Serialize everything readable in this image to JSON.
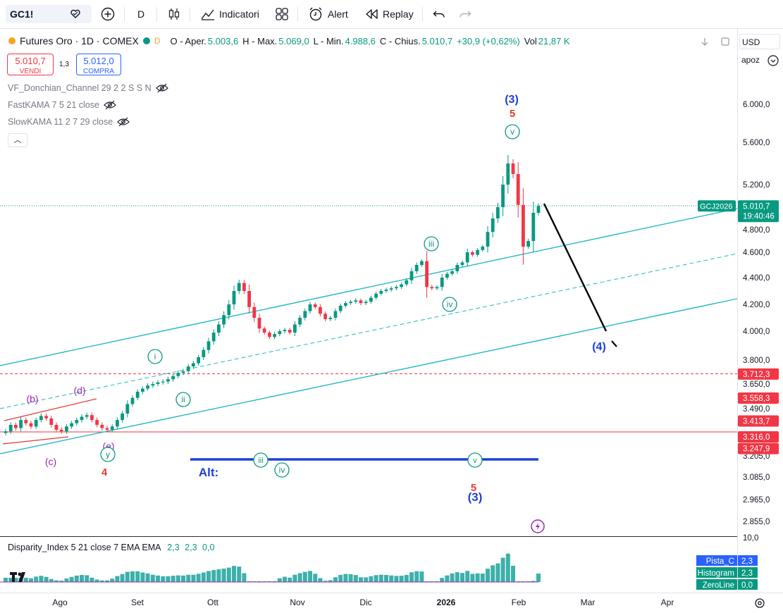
{
  "toolbar": {
    "symbol": "GC1!",
    "interval": "D",
    "indicators_label": "Indicatori",
    "alert_label": "Alert",
    "replay_label": "Replay"
  },
  "legend": {
    "title": "Futures Oro · 1D · COMEX",
    "badge": "D",
    "open_label": "O - Aper.",
    "open": "5.003,6",
    "high_label": "H - Max.",
    "high": "5.069,0",
    "low_label": "L - Min.",
    "low": "4.988,6",
    "close_label": "C - Chius.",
    "close": "5.010,7",
    "change": "+30,9 (+0,62%)",
    "vol_label": "Vol",
    "vol": "21,87 K"
  },
  "trade": {
    "sell_price": "5.010,7",
    "sell_label": "VENDI",
    "spread": "1,3",
    "buy_price": "5.012,0",
    "buy_label": "COMPRA"
  },
  "indicators": [
    "VF_Donchian_Channel 29 2 2 S S N",
    "FastKAMA 7 5 21 close",
    "SlowKAMA 11 2 7 29 close"
  ],
  "scale": {
    "currency": "USD",
    "mode": "apoz"
  },
  "subpane": {
    "title": "Disparity_Index 5 21 close 7 EMA EMA",
    "v1": "2,3",
    "v2": "2,3",
    "v3": "0,0",
    "top_tick": "10,0",
    "badges": [
      {
        "label": "Pista_C",
        "value": "2,3",
        "color": "#2962ff"
      },
      {
        "label": "Histogram",
        "value": "2,3",
        "color": "#089981"
      },
      {
        "label": "ZeroLine",
        "value": "0,0",
        "color": "#089981"
      }
    ]
  },
  "chart_data": {
    "type": "candlestick",
    "title": "Futures Oro · 1D · COMEX",
    "y_ticks": [
      2855,
      2965,
      3085,
      3205,
      3316,
      3490,
      3650,
      3800,
      4000,
      4200,
      4400,
      4600,
      4800,
      5200,
      5600,
      6000
    ],
    "y_tick_labels": [
      "2.855,0",
      "2.965,0",
      "3.085,0",
      "3.205,0",
      "3.316,0",
      "3.490,0",
      "3.650,0",
      "3.800,0",
      "4.000,0",
      "4.200,0",
      "4.400,0",
      "4.600,0",
      "4.800,0",
      "5.200,0",
      "5.600,0",
      "6.000,0"
    ],
    "x_labels": [
      "Ago",
      "Set",
      "Ott",
      "Nov",
      "Dic",
      "2026",
      "Feb",
      "Mar",
      "Apr"
    ],
    "series_close": [
      3350,
      3390,
      3370,
      3420,
      3400,
      3380,
      3420,
      3445,
      3430,
      3390,
      3360,
      3350,
      3380,
      3400,
      3420,
      3440,
      3450,
      3420,
      3390,
      3370,
      3360,
      3380,
      3420,
      3460,
      3520,
      3560,
      3600,
      3620,
      3640,
      3650,
      3660,
      3665,
      3680,
      3700,
      3720,
      3730,
      3760,
      3780,
      3820,
      3870,
      3930,
      3990,
      4050,
      4120,
      4200,
      4300,
      4360,
      4300,
      4180,
      4100,
      4020,
      3990,
      3960,
      3980,
      4000,
      4010,
      3990,
      4050,
      4100,
      4150,
      4200,
      4180,
      4130,
      4090,
      4100,
      4150,
      4190,
      4210,
      4220,
      4230,
      4210,
      4220,
      4250,
      4280,
      4300,
      4310,
      4320,
      4330,
      4350,
      4380,
      4450,
      4500,
      4530,
      4330,
      4320,
      4330,
      4400,
      4430,
      4450,
      4500,
      4520,
      4600,
      4580,
      4620,
      4650,
      4780,
      4900,
      5000,
      5200,
      5400,
      5300,
      5020,
      4650,
      4700,
      4950,
      5010
    ],
    "price_labels": [
      {
        "text": "3.712,3",
        "value": 3712.3,
        "color": "#f23645"
      },
      {
        "text": "3.558,3",
        "value": 3558.3,
        "color": "#f23645"
      },
      {
        "text": "3.413,7",
        "value": 3413.7,
        "color": "#f23645"
      },
      {
        "text": "3.316,0",
        "value": 3316.0,
        "color": "#f23645"
      },
      {
        "text": "3.247,9",
        "value": 3247.9,
        "color": "#f23645"
      }
    ],
    "last_price": {
      "symbol": "GCJ2026",
      "text": "5.010,7",
      "time": "19:40:46",
      "value": 5010.7
    },
    "annotations": [
      "(3)",
      "5",
      "v",
      "iii",
      "iv",
      "i",
      "ii",
      "(b)",
      "(d)",
      "(c)",
      "(e)",
      "y",
      "4",
      "(4)",
      "Alt:",
      "iii",
      "iv",
      "v",
      "5",
      "(3)"
    ]
  }
}
